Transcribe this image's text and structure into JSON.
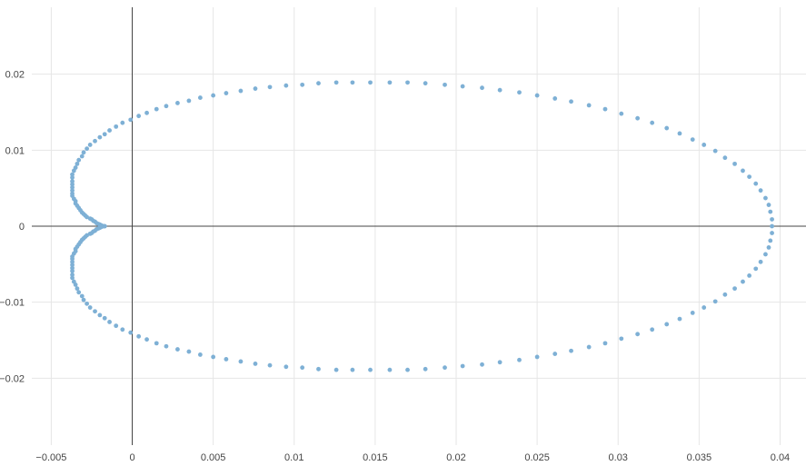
{
  "chart_data": {
    "type": "scatter",
    "title": "",
    "xlabel": "",
    "ylabel": "",
    "xlim": [
      -0.0062,
      0.0416
    ],
    "ylim": [
      -0.0288,
      0.0288
    ],
    "grid": true,
    "zero_lines": true,
    "x_ticks": [
      -0.005,
      0,
      0.005,
      0.01,
      0.015,
      0.02,
      0.025,
      0.03,
      0.035,
      0.04
    ],
    "x_tick_labels": [
      "−0.005",
      "0",
      "0.005",
      "0.01",
      "0.015",
      "0.02",
      "0.025",
      "0.03",
      "0.035",
      "0.04"
    ],
    "y_ticks": [
      0.02,
      0.01,
      0,
      -0.01,
      -0.02
    ],
    "y_tick_labels": [
      "0.02",
      "0.01",
      "0",
      "−0.01",
      "−0.02"
    ],
    "series": [
      {
        "marker_color": "#7eb0d5",
        "points": [
          [
            0.0395,
            0.0
          ],
          [
            0.0395,
            0.0009
          ],
          [
            0.0394,
            0.0019
          ],
          [
            0.0393,
            0.0028
          ],
          [
            0.0391,
            0.0037
          ],
          [
            0.0388,
            0.0047
          ],
          [
            0.0385,
            0.0056
          ],
          [
            0.0381,
            0.0065
          ],
          [
            0.0377,
            0.0073
          ],
          [
            0.0372,
            0.0082
          ],
          [
            0.0366,
            0.009
          ],
          [
            0.036,
            0.0099
          ],
          [
            0.0353,
            0.0107
          ],
          [
            0.0346,
            0.0114
          ],
          [
            0.0338,
            0.0122
          ],
          [
            0.033,
            0.0129
          ],
          [
            0.0321,
            0.0136
          ],
          [
            0.0312,
            0.0142
          ],
          [
            0.0302,
            0.0148
          ],
          [
            0.0292,
            0.0154
          ],
          [
            0.0282,
            0.0159
          ],
          [
            0.0271,
            0.0164
          ],
          [
            0.0261,
            0.0168
          ],
          [
            0.025,
            0.0172
          ],
          [
            0.0239,
            0.0176
          ],
          [
            0.0227,
            0.0179
          ],
          [
            0.0216,
            0.0182
          ],
          [
            0.0204,
            0.0184
          ],
          [
            0.0193,
            0.0186
          ],
          [
            0.0181,
            0.0188
          ],
          [
            0.017,
            0.0189
          ],
          [
            0.0159,
            0.0189
          ],
          [
            0.0147,
            0.0189
          ],
          [
            0.0136,
            0.0189
          ],
          [
            0.0126,
            0.0189
          ],
          [
            0.0115,
            0.0188
          ],
          [
            0.0105,
            0.0186
          ],
          [
            0.0095,
            0.0185
          ],
          [
            0.0085,
            0.0183
          ],
          [
            0.0076,
            0.0181
          ],
          [
            0.0067,
            0.0178
          ],
          [
            0.0058,
            0.0175
          ],
          [
            0.005,
            0.0172
          ],
          [
            0.0042,
            0.0169
          ],
          [
            0.0035,
            0.0165
          ],
          [
            0.0028,
            0.0162
          ],
          [
            0.0021,
            0.0158
          ],
          [
            0.0015,
            0.0154
          ],
          [
            0.0009,
            0.0149
          ],
          [
            0.0004,
            0.0145
          ],
          [
            -0.0001,
            0.014
          ],
          [
            -0.0006,
            0.0136
          ],
          [
            -0.001,
            0.0131
          ],
          [
            -0.0014,
            0.0126
          ],
          [
            -0.0017,
            0.0121
          ],
          [
            -0.002,
            0.0117
          ],
          [
            -0.0023,
            0.0112
          ],
          [
            -0.0026,
            0.0107
          ],
          [
            -0.0028,
            0.0102
          ],
          [
            -0.003,
            0.0097
          ],
          [
            -0.0031,
            0.0092
          ],
          [
            -0.0033,
            0.0087
          ],
          [
            -0.0034,
            0.0082
          ],
          [
            -0.0035,
            0.0077
          ],
          [
            -0.0036,
            0.0073
          ],
          [
            -0.0037,
            0.0068
          ],
          [
            -0.0037,
            0.0064
          ],
          [
            -0.0037,
            0.0059
          ],
          [
            -0.0037,
            0.0055
          ],
          [
            -0.0037,
            0.0051
          ],
          [
            -0.0037,
            0.0047
          ],
          [
            -0.0037,
            0.0043
          ],
          [
            -0.0037,
            0.004
          ],
          [
            -0.0036,
            0.0036
          ],
          [
            -0.0035,
            0.0033
          ],
          [
            -0.0035,
            0.003
          ],
          [
            -0.0034,
            0.0027
          ],
          [
            -0.0033,
            0.0024
          ],
          [
            -0.0032,
            0.0021
          ],
          [
            -0.0031,
            0.0018
          ],
          [
            -0.003,
            0.0016
          ],
          [
            -0.0029,
            0.0014
          ],
          [
            -0.0028,
            0.0012
          ],
          [
            -0.0026,
            0.001
          ],
          [
            -0.0025,
            0.0009
          ],
          [
            -0.0024,
            0.0007
          ],
          [
            -0.0023,
            0.0006
          ],
          [
            -0.0022,
            0.0004
          ],
          [
            -0.0021,
            0.0003
          ],
          [
            -0.002,
            0.0002
          ],
          [
            -0.002,
            0.0002
          ],
          [
            -0.0019,
            0.0001
          ],
          [
            -0.0018,
            0.0
          ],
          [
            -0.0018,
            0.0
          ],
          [
            -0.0018,
            0.0
          ],
          [
            -0.0017,
            0.0
          ],
          [
            -0.0017,
            0.0
          ]
        ]
      }
    ]
  }
}
